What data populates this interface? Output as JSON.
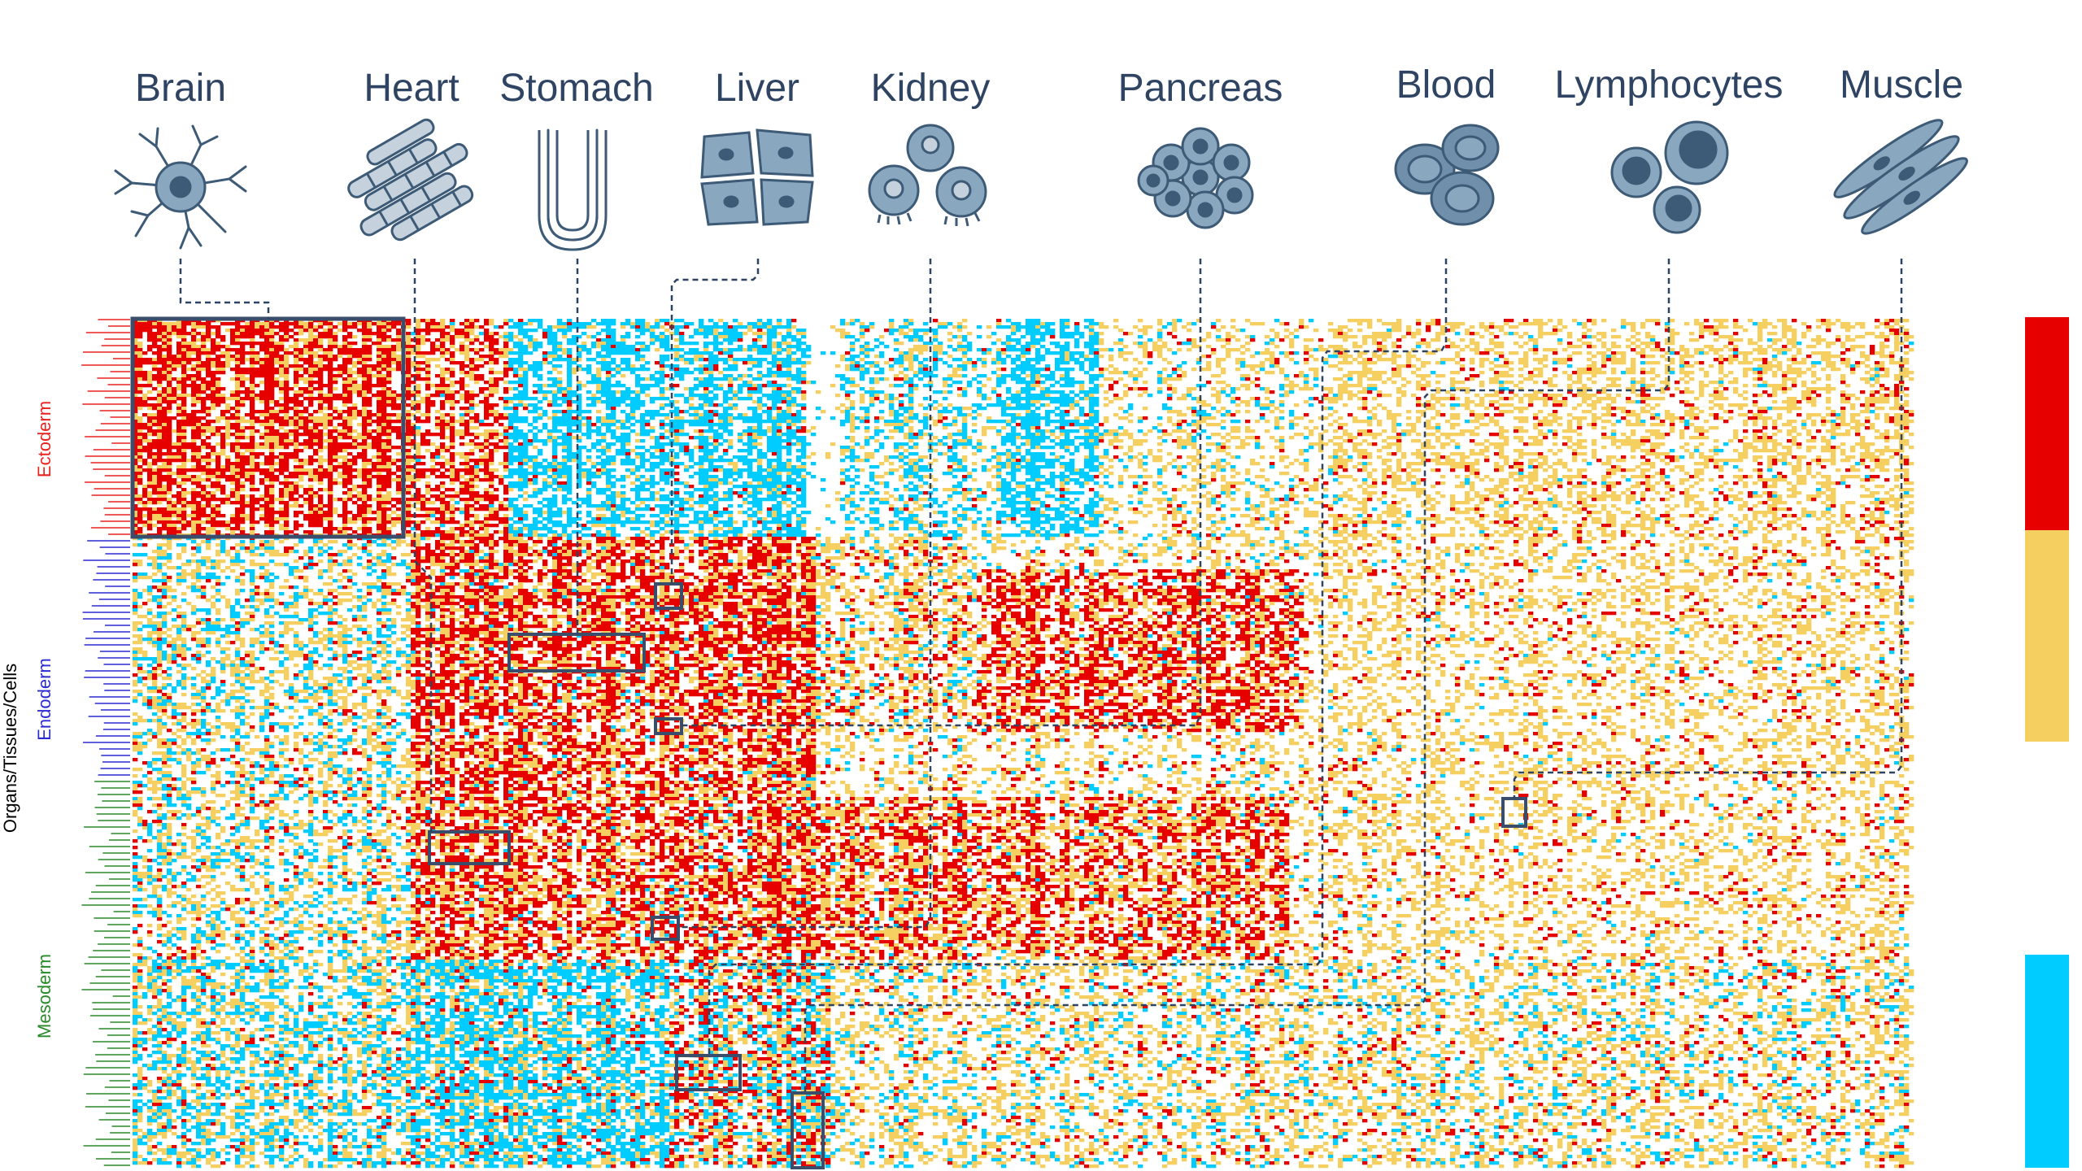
{
  "chart_data": {
    "type": "heatmap",
    "ylabel": "Organs/Tissues/Cells",
    "columns": [
      {
        "name": "Brain",
        "icon": "neuron-icon"
      },
      {
        "name": "Heart",
        "icon": "cardiac-fiber-icon"
      },
      {
        "name": "Stomach",
        "icon": "villus-icon"
      },
      {
        "name": "Liver",
        "icon": "hepatocyte-icon"
      },
      {
        "name": "Kidney",
        "icon": "kidney-cell-icon"
      },
      {
        "name": "Pancreas",
        "icon": "acinar-cluster-icon"
      },
      {
        "name": "Blood",
        "icon": "red-blood-cell-icon"
      },
      {
        "name": "Lymphocytes",
        "icon": "lymphocyte-icon"
      },
      {
        "name": "Muscle",
        "icon": "muscle-fiber-icon"
      }
    ],
    "row_groups": [
      {
        "name": "Ectoderm",
        "color": "#e8221f"
      },
      {
        "name": "Endoderm",
        "color": "#2b2bd0"
      },
      {
        "name": "Mesoderm",
        "color": "#2a8a2a"
      }
    ],
    "color_scale": [
      "#e60000",
      "#f5d060",
      "#ffffff",
      "#00ccff"
    ],
    "grid": false,
    "legend": "right"
  },
  "colors": {
    "high": "#e60000",
    "mid": "#f5d060",
    "none": "#ffffff",
    "low": "#00ccff",
    "box": "#3a4d6a",
    "connector": "#2f4463"
  }
}
